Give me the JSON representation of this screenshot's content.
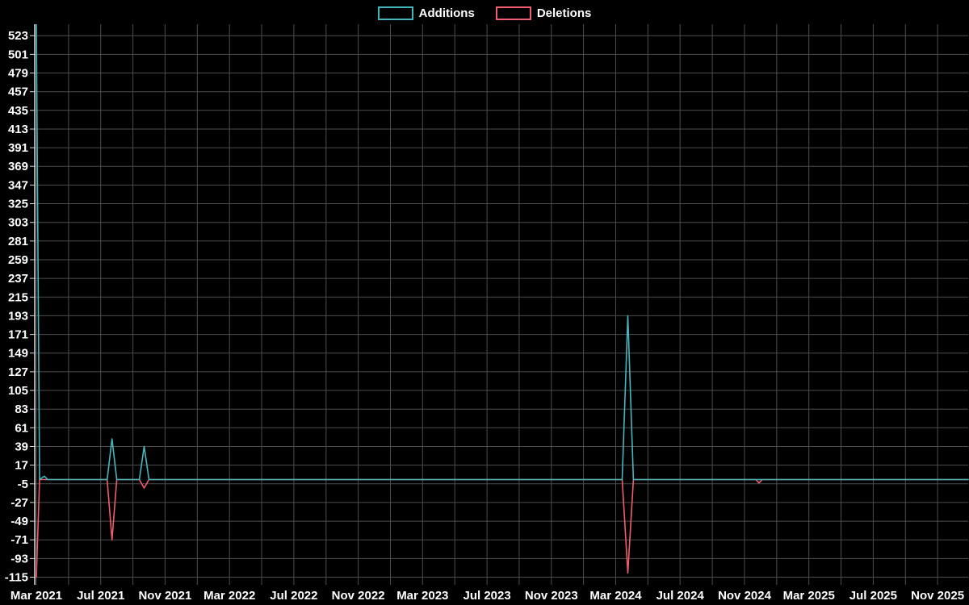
{
  "chart_data": {
    "type": "line",
    "title": "",
    "legend_position": "top-center",
    "legend": [
      "Additions",
      "Deletions"
    ],
    "background": "#000000",
    "grid": true,
    "grid_color": "#4d4d4d",
    "axis_color": "#d9d9d9",
    "label_color": "#ffffff",
    "x_unit": "months since Mar 2021",
    "xlim_months": [
      -0.1,
      57.9
    ],
    "ylim": [
      -124,
      536.5
    ],
    "grid_x_step_months": 2,
    "y_ticks": [
      523,
      501,
      479,
      457,
      435,
      413,
      391,
      369,
      347,
      325,
      303,
      281,
      259,
      237,
      215,
      193,
      171,
      149,
      127,
      105,
      83,
      61,
      39,
      17,
      -5,
      -27,
      -49,
      -71,
      -93,
      -115
    ],
    "x_ticks": [
      {
        "m": 0,
        "label": "Mar 2021"
      },
      {
        "m": 4,
        "label": "Jul 2021"
      },
      {
        "m": 8,
        "label": "Nov 2021"
      },
      {
        "m": 12,
        "label": "Mar 2022"
      },
      {
        "m": 16,
        "label": "Jul 2022"
      },
      {
        "m": 20,
        "label": "Nov 2022"
      },
      {
        "m": 24,
        "label": "Mar 2023"
      },
      {
        "m": 28,
        "label": "Jul 2023"
      },
      {
        "m": 32,
        "label": "Nov 2023"
      },
      {
        "m": 36,
        "label": "Mar 2024"
      },
      {
        "m": 40,
        "label": "Jul 2024"
      },
      {
        "m": 44,
        "label": "Nov 2024"
      },
      {
        "m": 48,
        "label": "Mar 2025"
      },
      {
        "m": 52,
        "label": "Jul 2025"
      },
      {
        "m": 56,
        "label": "Nov 2025"
      }
    ],
    "series": [
      {
        "name": "Additions",
        "color": "#45b6be",
        "points": [
          [
            0,
            536
          ],
          [
            0.2,
            0
          ],
          [
            0.5,
            4
          ],
          [
            0.7,
            0
          ],
          [
            4.4,
            0
          ],
          [
            4.7,
            48
          ],
          [
            5.0,
            0
          ],
          [
            6.4,
            0
          ],
          [
            6.7,
            39
          ],
          [
            7.0,
            0
          ],
          [
            36.4,
            0
          ],
          [
            36.75,
            193
          ],
          [
            37.1,
            0
          ],
          [
            57.9,
            0
          ]
        ]
      },
      {
        "name": "Deletions",
        "color": "#f25b6b",
        "points": [
          [
            0,
            -115
          ],
          [
            0.2,
            0
          ],
          [
            4.4,
            0
          ],
          [
            4.7,
            -71
          ],
          [
            5.0,
            0
          ],
          [
            6.4,
            0
          ],
          [
            6.7,
            -10
          ],
          [
            7.0,
            0
          ],
          [
            36.4,
            0
          ],
          [
            36.75,
            -110
          ],
          [
            37.1,
            0
          ],
          [
            44.7,
            0
          ],
          [
            44.9,
            -4
          ],
          [
            45.1,
            0
          ],
          [
            57.9,
            0
          ]
        ]
      }
    ]
  }
}
